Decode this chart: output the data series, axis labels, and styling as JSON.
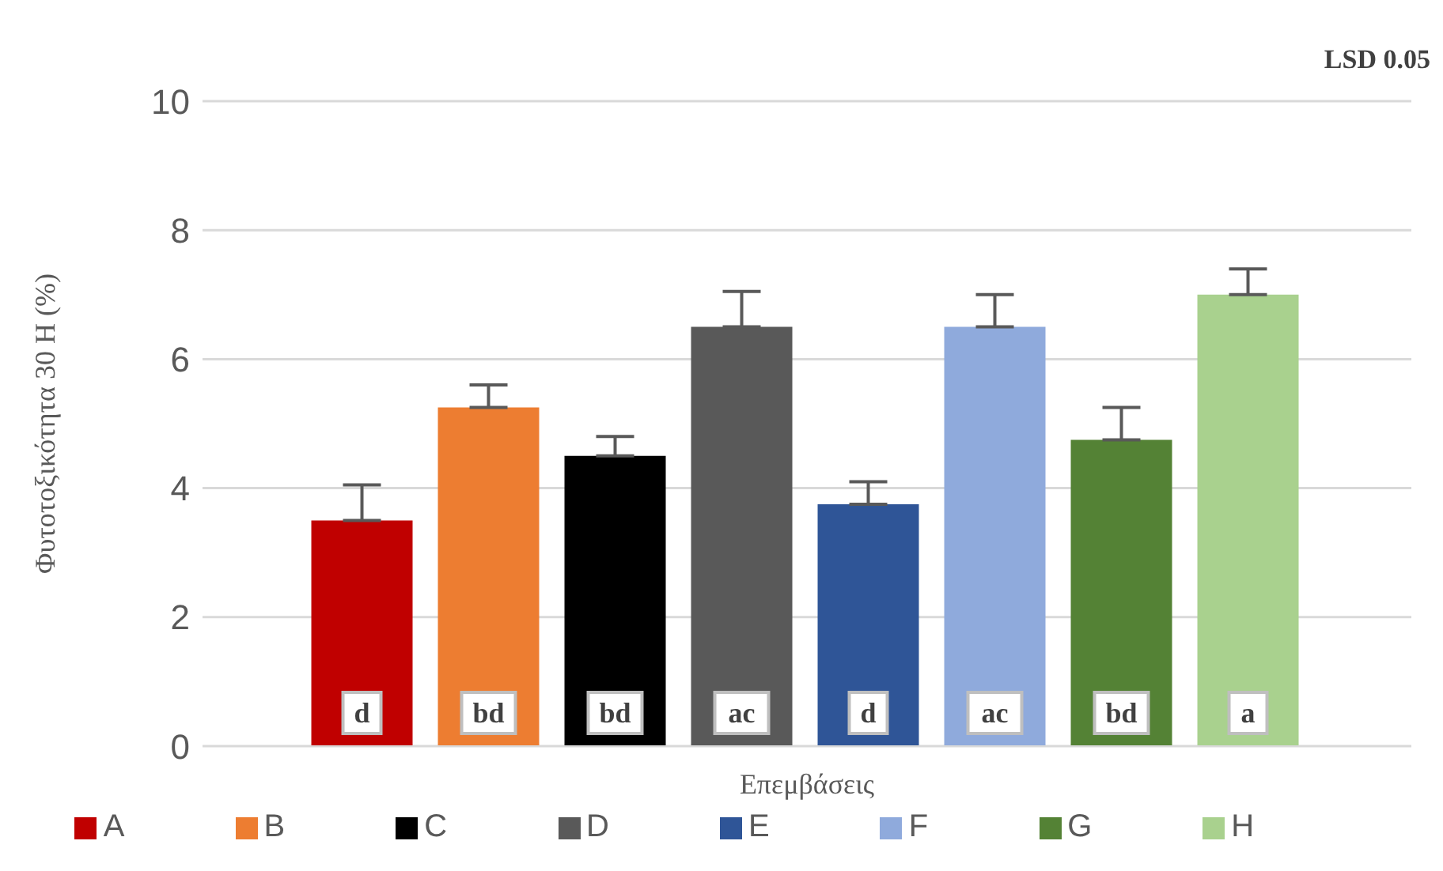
{
  "chart_data": {
    "type": "bar",
    "ylabel": "Φυτοτοξικότητα  30  Η (%)",
    "xlabel": "Επεμβάσεις",
    "annotations": [
      "LSD 0.05"
    ],
    "categories": [
      null
    ],
    "series": [
      {
        "name": "A",
        "color": "#c00000",
        "values": [
          3.5
        ],
        "errors": [
          [
            3.5,
            4.05
          ]
        ],
        "value_labels": [
          "d"
        ]
      },
      {
        "name": "B",
        "color": "#ed7d31",
        "values": [
          5.25
        ],
        "errors": [
          [
            5.25,
            5.6
          ]
        ],
        "value_labels": [
          "bd"
        ]
      },
      {
        "name": "C",
        "color": "#000000",
        "values": [
          4.5
        ],
        "errors": [
          [
            4.5,
            4.8
          ]
        ],
        "value_labels": [
          "bd"
        ]
      },
      {
        "name": "D",
        "color": "#595959",
        "values": [
          6.5
        ],
        "errors": [
          [
            6.5,
            7.05
          ]
        ],
        "value_labels": [
          "ac"
        ]
      },
      {
        "name": "E",
        "color": "#2f5597",
        "values": [
          3.75
        ],
        "errors": [
          [
            3.75,
            4.1
          ]
        ],
        "value_labels": [
          "d"
        ]
      },
      {
        "name": "F",
        "color": "#8faadc",
        "values": [
          6.5
        ],
        "errors": [
          [
            6.5,
            7.0
          ]
        ],
        "value_labels": [
          "ac"
        ]
      },
      {
        "name": "G",
        "color": "#548235",
        "values": [
          4.75
        ],
        "errors": [
          [
            4.75,
            5.25
          ]
        ],
        "value_labels": [
          "bd"
        ]
      },
      {
        "name": "H",
        "color": "#a9d18e",
        "values": [
          7
        ],
        "errors": [
          [
            7,
            7.4
          ]
        ],
        "value_labels": [
          "a"
        ]
      }
    ],
    "ylim": [
      0,
      10
    ],
    "yticks": [
      0,
      2,
      4,
      6,
      8,
      10
    ],
    "grid": "y",
    "legend": "bottom"
  }
}
